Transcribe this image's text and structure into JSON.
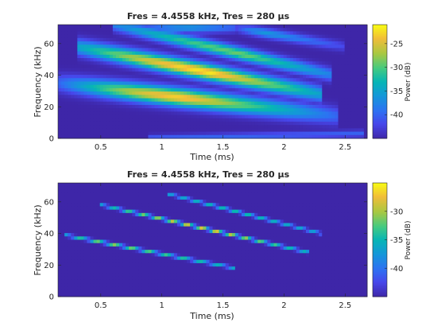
{
  "chart_data": [
    {
      "type": "heatmap",
      "title": "Fres = 4.4558 kHz, Tres = 280 µs",
      "xlabel": "Time (ms)",
      "ylabel": "Frequency (kHz)",
      "xlim": [
        0.15,
        2.68
      ],
      "ylim": [
        0,
        72
      ],
      "xticks": [
        0.5,
        1,
        1.5,
        2,
        2.5
      ],
      "xticklabels": [
        "0.5",
        "1",
        "1.5",
        "2",
        "2.5"
      ],
      "yticks": [
        0,
        20,
        40,
        60
      ],
      "yticklabels": [
        "0",
        "20",
        "40",
        "60"
      ],
      "colorbar": {
        "label": "Power (dB)",
        "clim": [
          -45,
          -21
        ],
        "ticks": [
          -40,
          -35,
          -30,
          -25
        ],
        "ticklabels": [
          "-40",
          "-35",
          "-30",
          "-25"
        ],
        "colormap": "parula"
      },
      "background_db": -45,
      "ridges": [
        {
          "t_start": 0.15,
          "t_end": 2.45,
          "f_start": 35,
          "f_end": 14,
          "curve": 0.0,
          "halfwidth_khz": 5.5,
          "peak_db": -23,
          "end_db": -40,
          "peak_at": 0.45
        },
        {
          "t_start": 0.9,
          "t_end": 2.65,
          "f_start": 0,
          "f_end": 3,
          "curve": 0.0,
          "halfwidth_khz": 2.0,
          "peak_db": -40,
          "end_db": -40,
          "peak_at": 0.5
        },
        {
          "t_start": 0.3,
          "t_end": 2.3,
          "f_start": 58,
          "f_end": 28,
          "curve": 0.0,
          "halfwidth_khz": 5.0,
          "peak_db": -22,
          "end_db": -35,
          "peak_at": 0.55
        },
        {
          "t_start": 0.6,
          "t_end": 2.4,
          "f_start": 72,
          "f_end": 40,
          "curve": 0.0,
          "halfwidth_khz": 4.0,
          "peak_db": -29,
          "end_db": -38,
          "peak_at": 0.6
        },
        {
          "t_start": 0.9,
          "t_end": 1.6,
          "f_start": 70,
          "f_end": 70,
          "curve": 0.0,
          "halfwidth_khz": 3.0,
          "peak_db": -36,
          "end_db": -40,
          "peak_at": 0.5
        },
        {
          "t_start": 1.6,
          "t_end": 2.5,
          "f_start": 70,
          "f_end": 58,
          "curve": 0.0,
          "halfwidth_khz": 3.0,
          "peak_db": -36,
          "end_db": -42,
          "peak_at": 0.3
        }
      ]
    },
    {
      "type": "heatmap",
      "title": "Fres = 4.4558 kHz, Tres = 280 µs",
      "xlabel": "Time (ms)",
      "ylabel": "Frequency (kHz)",
      "xlim": [
        0.15,
        2.68
      ],
      "ylim": [
        0,
        72
      ],
      "xticks": [
        0.5,
        1,
        1.5,
        2,
        2.5
      ],
      "xticklabels": [
        "0.5",
        "1",
        "1.5",
        "2",
        "2.5"
      ],
      "yticks": [
        0,
        20,
        40,
        60
      ],
      "yticklabels": [
        "0",
        "20",
        "40",
        "60"
      ],
      "colorbar": {
        "label": "Power (dB)",
        "clim": [
          -45,
          -25
        ],
        "ticks": [
          -40,
          -35,
          -30
        ],
        "ticklabels": [
          "-40",
          "-35",
          "-30"
        ],
        "colormap": "parula"
      },
      "background_db": -45,
      "ridges": [
        {
          "t_start": 0.2,
          "t_end": 1.6,
          "f_start": 39,
          "f_end": 18,
          "curve": 0.0,
          "halfwidth_khz": 0.9,
          "peak_db": -31,
          "end_db": -36,
          "peak_at": 0.3
        },
        {
          "t_start": 0.5,
          "t_end": 2.2,
          "f_start": 58,
          "f_end": 28,
          "curve": 0.0,
          "halfwidth_khz": 0.9,
          "peak_db": -28,
          "end_db": -36,
          "peak_at": 0.55
        },
        {
          "t_start": 1.05,
          "t_end": 2.3,
          "f_start": 65,
          "f_end": 40,
          "curve": 0.0,
          "halfwidth_khz": 0.9,
          "peak_db": -34,
          "end_db": -37,
          "peak_at": 0.5
        }
      ]
    }
  ]
}
